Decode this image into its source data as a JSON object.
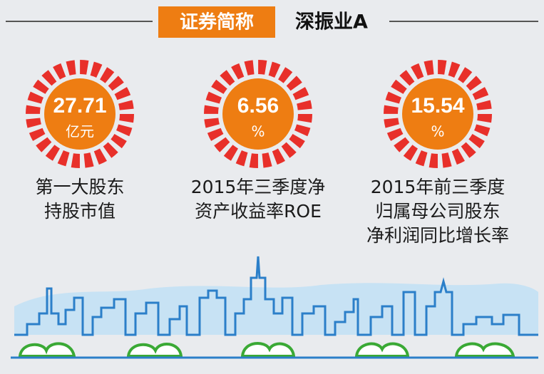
{
  "header": {
    "label": "证券简称",
    "name": "深振业A"
  },
  "metrics": [
    {
      "value": "27.71",
      "unit": "亿元",
      "lines": [
        "第一大股东",
        "持股市值"
      ]
    },
    {
      "value": "6.56",
      "unit": "%",
      "lines": [
        "2015年三季度净",
        "资产收益率ROE"
      ]
    },
    {
      "value": "15.54",
      "unit": "%",
      "lines": [
        "2015年前三季度",
        "归属母公司股东",
        "净利润同比增长率"
      ]
    }
  ]
}
